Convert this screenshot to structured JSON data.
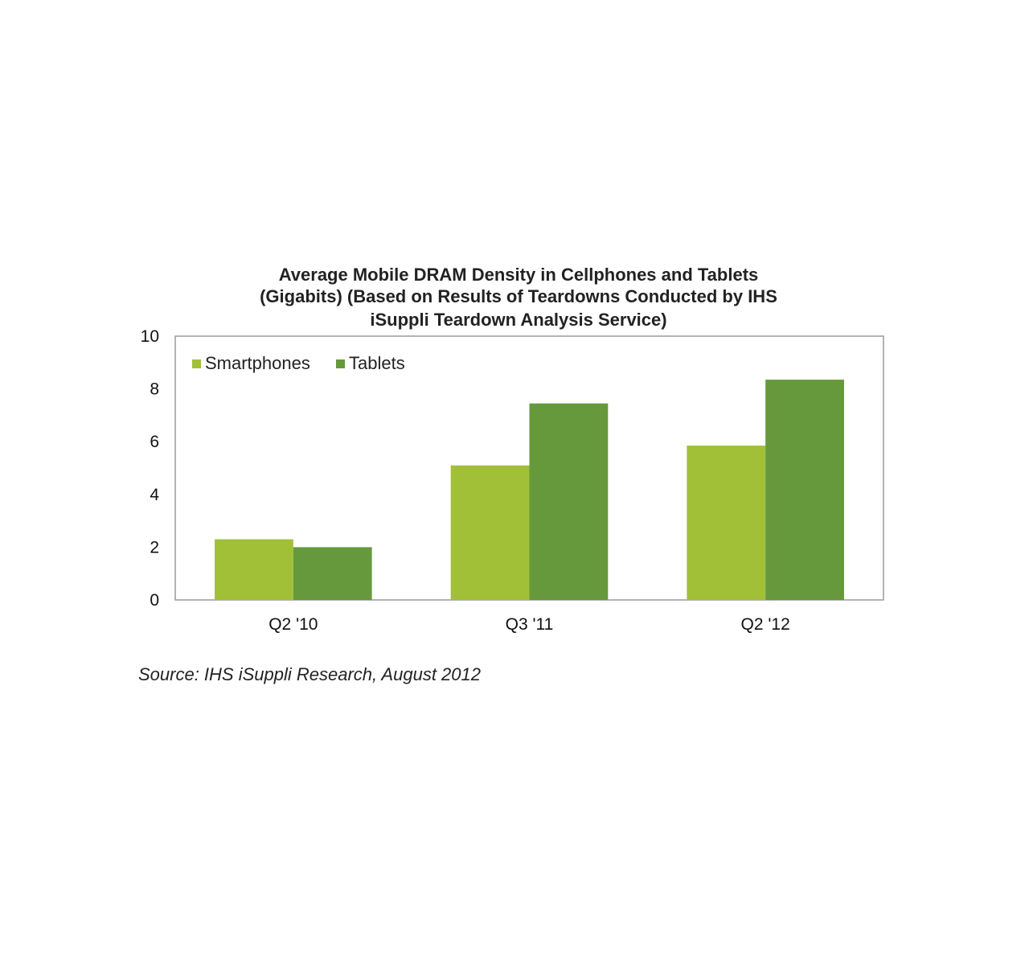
{
  "chart_data": {
    "type": "bar",
    "title_lines": [
      "Average Mobile DRAM Density in Cellphones and Tablets",
      "(Gigabits) (Based on Results of Teardowns Conducted by IHS",
      "iSuppli Teardown Analysis Service)"
    ],
    "categories": [
      "Q2 '10",
      "Q3 '11",
      "Q2 '12"
    ],
    "series": [
      {
        "name": "Smartphones",
        "values": [
          2.3,
          5.1,
          5.85
        ],
        "color": "#a2c037"
      },
      {
        "name": "Tablets",
        "values": [
          2.0,
          7.45,
          8.35
        ],
        "color": "#66993c"
      }
    ],
    "ylim": [
      0,
      10
    ],
    "yticks": [
      0,
      2,
      4,
      6,
      8,
      10
    ],
    "legend_position": "top-left",
    "grid": false,
    "source": "Source: IHS iSuppli Research, August 2012"
  }
}
